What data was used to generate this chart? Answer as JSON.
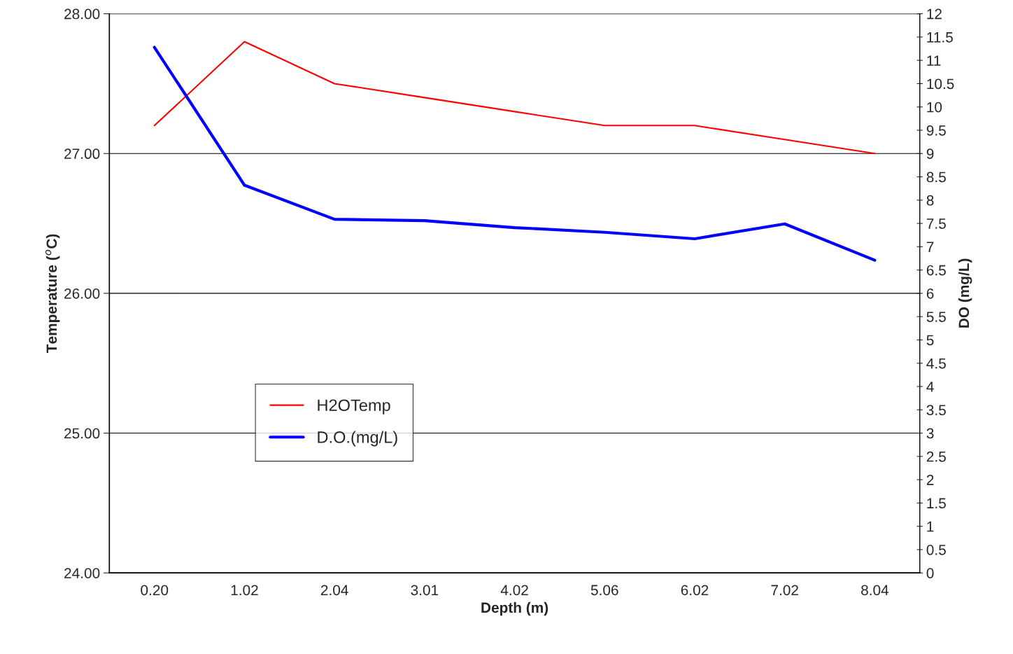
{
  "chart_data": {
    "type": "line",
    "xlabel": "Depth (m)",
    "ylabel": "Temperature ($^{o}$C)",
    "y2label": "DO (mg/L)",
    "categories": [
      "0.20",
      "1.02",
      "2.04",
      "3.01",
      "4.02",
      "5.06",
      "6.02",
      "7.02",
      "8.04"
    ],
    "series": [
      {
        "name": "H2OTemp",
        "color": "#ff0000",
        "values": [
          27.2,
          27.8,
          27.5,
          27.4,
          27.3,
          27.2,
          27.2,
          27.1,
          27.0
        ]
      },
      {
        "name": "D.O.(mg/L)",
        "color": "#0000ff",
        "axis": "y2",
        "values": [
          11.28,
          8.32,
          7.59,
          7.56,
          7.41,
          7.31,
          7.17,
          7.49,
          6.71
        ]
      }
    ],
    "ylim": [
      24,
      28
    ],
    "yticks": [
      {
        "value": 24,
        "label": "24.00"
      },
      {
        "value": 25,
        "label": "25.00"
      },
      {
        "value": 26,
        "label": "26.00"
      },
      {
        "value": 27,
        "label": "27.00"
      },
      {
        "value": 28,
        "label": "28.00"
      }
    ],
    "y2lim": [
      0,
      12
    ],
    "y2ticks": [
      0,
      0.5,
      1,
      1.5,
      2,
      2.5,
      3,
      3.5,
      4,
      4.5,
      5,
      5.5,
      6,
      6.5,
      7,
      7.5,
      8,
      8.5,
      9,
      9.5,
      10,
      10.5,
      11,
      11.5,
      12
    ],
    "grid": "y",
    "legend": "bottom left",
    "marker": "none",
    "line_style": "solid"
  }
}
